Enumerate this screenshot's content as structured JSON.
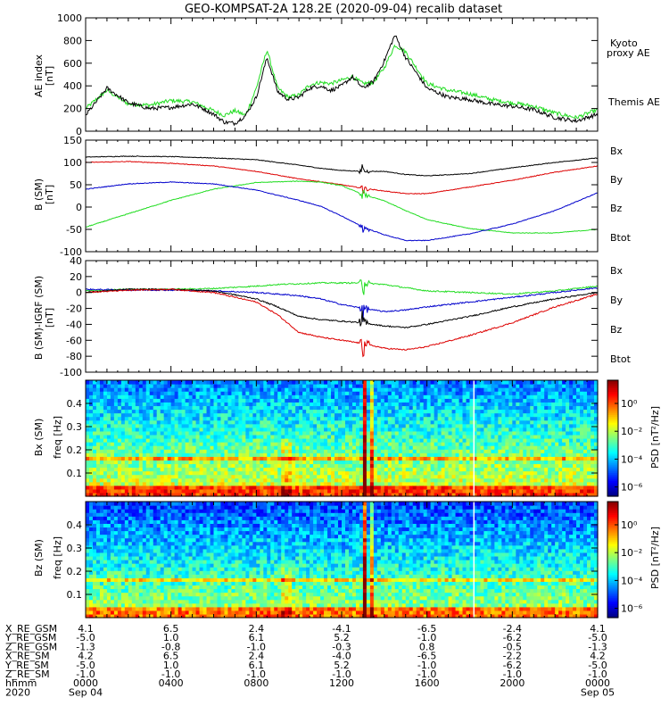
{
  "title": "GEO-KOMPSAT-2A 128.2E (2020-09-04) recalib dataset",
  "colors": {
    "black": "#000000",
    "green": "#22dd22",
    "blue": "#0000cc",
    "red": "#dd0000",
    "legend_green": "#33cc33",
    "legend_blue": "#0000aa",
    "legend_red": "#cc0000"
  },
  "x_axis": {
    "ticks": [
      "0000",
      "0400",
      "0800",
      "1200",
      "1600",
      "2000",
      "0000"
    ],
    "xlim": [
      0,
      24
    ]
  },
  "chart_data": [
    {
      "id": "ae",
      "type": "line",
      "ylabel": "AE index",
      "yunit": "[nT]",
      "ylim": [
        0,
        1000
      ],
      "yticks": [
        "0",
        "200",
        "400",
        "600",
        "800",
        "1000"
      ],
      "legend": [
        "Kyoto proxy AE",
        "Themis AE"
      ],
      "x": [
        0,
        1,
        2,
        3,
        4,
        5,
        5.5,
        6,
        6.5,
        7,
        7.5,
        8,
        8.5,
        9,
        9.5,
        10,
        10.5,
        11,
        11.5,
        12,
        12.5,
        13,
        13.5,
        14,
        14.5,
        15,
        16,
        17,
        18,
        19,
        20,
        21,
        22,
        23,
        24
      ],
      "series": [
        {
          "name": "Kyoto proxy AE",
          "color": "green",
          "values": [
            200,
            360,
            240,
            230,
            270,
            260,
            220,
            180,
            140,
            180,
            140,
            380,
            720,
            380,
            300,
            320,
            410,
            430,
            420,
            450,
            480,
            420,
            430,
            560,
            760,
            700,
            420,
            360,
            330,
            280,
            250,
            220,
            160,
            120,
            190
          ]
        },
        {
          "name": "Themis AE",
          "color": "black",
          "values": [
            140,
            380,
            250,
            200,
            210,
            240,
            200,
            150,
            80,
            70,
            140,
            300,
            650,
            350,
            280,
            300,
            380,
            400,
            360,
            400,
            480,
            380,
            440,
            620,
            850,
            650,
            380,
            300,
            280,
            240,
            220,
            190,
            120,
            90,
            150
          ]
        }
      ]
    },
    {
      "id": "bsm",
      "type": "line",
      "ylabel": "B (SM)",
      "yunit": "[nT]",
      "ylim": [
        -100,
        150
      ],
      "yticks": [
        "-100",
        "-50",
        "0",
        "50",
        "100",
        "150"
      ],
      "legend": [
        "Bx",
        "By",
        "Bz",
        "Btot"
      ],
      "x": [
        0,
        2,
        4,
        6,
        8,
        10,
        11,
        12,
        13,
        14,
        15,
        16,
        18,
        20,
        22,
        24
      ],
      "series": [
        {
          "name": "Btot",
          "color": "black",
          "values": [
            112,
            114,
            113,
            110,
            106,
            94,
            87,
            82,
            80,
            80,
            73,
            70,
            75,
            88,
            100,
            110
          ]
        },
        {
          "name": "Bz",
          "color": "red",
          "values": [
            100,
            102,
            98,
            92,
            80,
            63,
            57,
            50,
            42,
            36,
            30,
            30,
            45,
            60,
            78,
            92
          ]
        },
        {
          "name": "By",
          "color": "green",
          "values": [
            -45,
            -15,
            15,
            40,
            55,
            58,
            56,
            48,
            28,
            14,
            -8,
            -28,
            -48,
            -58,
            -58,
            -50
          ]
        },
        {
          "name": "Bx",
          "color": "blue",
          "values": [
            40,
            52,
            56,
            52,
            38,
            15,
            2,
            -20,
            -45,
            -62,
            -75,
            -75,
            -60,
            -38,
            -8,
            32
          ]
        }
      ]
    },
    {
      "id": "dbsm",
      "type": "line",
      "ylabel": "B (SM)-IGRF (SM)",
      "yunit": "[nT]",
      "ylim": [
        -100,
        40
      ],
      "yticks": [
        "-100",
        "-80",
        "-60",
        "-40",
        "-20",
        "0",
        "20",
        "40"
      ],
      "legend": [
        "Bx",
        "By",
        "Bz",
        "Btot"
      ],
      "x": [
        0,
        2,
        4,
        6,
        8,
        9,
        10,
        11,
        12,
        13,
        14,
        15,
        16,
        18,
        20,
        22,
        24
      ],
      "series": [
        {
          "name": "By",
          "color": "green",
          "values": [
            2,
            4,
            4,
            5,
            8,
            10,
            11,
            12,
            12,
            12,
            10,
            6,
            2,
            0,
            -2,
            2,
            8
          ]
        },
        {
          "name": "Bx",
          "color": "blue",
          "values": [
            4,
            3,
            3,
            2,
            0,
            -2,
            -4,
            -8,
            -15,
            -20,
            -24,
            -22,
            -18,
            -12,
            -6,
            0,
            6
          ]
        },
        {
          "name": "Btot",
          "color": "black",
          "values": [
            0,
            4,
            4,
            2,
            -8,
            -18,
            -30,
            -34,
            -36,
            -38,
            -42,
            -44,
            -40,
            -30,
            -18,
            -8,
            0
          ]
        },
        {
          "name": "Bz",
          "color": "red",
          "values": [
            0,
            3,
            4,
            0,
            -12,
            -28,
            -50,
            -56,
            -60,
            -64,
            -70,
            -72,
            -68,
            -54,
            -38,
            -18,
            -2
          ]
        }
      ]
    },
    {
      "id": "bx_spec",
      "type": "heatmap",
      "ylabel": "Bx (SM)",
      "ylabel2": "freq [Hz]",
      "ylim": [
        0,
        0.5
      ],
      "yticks": [
        "0.1",
        "0.2",
        "0.3",
        "0.4"
      ],
      "colorbar": {
        "label": "PSD [nT²/Hz]",
        "ticks": [
          "10⁰",
          "10⁻²",
          "10⁻⁴",
          "10⁻⁶"
        ]
      }
    },
    {
      "id": "bz_spec",
      "type": "heatmap",
      "ylabel": "Bz (SM)",
      "ylabel2": "freq [Hz]",
      "ylim": [
        0,
        0.5
      ],
      "yticks": [
        "0.1",
        "0.2",
        "0.3",
        "0.4"
      ],
      "colorbar": {
        "label": "PSD [nT²/Hz]",
        "ticks": [
          "10⁰",
          "10⁻²",
          "10⁻⁴",
          "10⁻⁶"
        ]
      }
    }
  ],
  "ephemeris": {
    "rows": [
      {
        "label": "X_RE_GSM",
        "values": [
          "4.1",
          "6.5",
          "2.4",
          "-4.1",
          "-6.5",
          "-2.4",
          "4.1"
        ]
      },
      {
        "label": "Y_RE_GSM",
        "values": [
          "-5.0",
          "1.0",
          "6.1",
          "5.2",
          "-1.0",
          "-6.2",
          "-5.0"
        ]
      },
      {
        "label": "Z_RE_GSM",
        "values": [
          "-1.3",
          "-0.8",
          "-1.0",
          "-0.3",
          "0.8",
          "-0.5",
          "-1.3"
        ]
      },
      {
        "label": "X_RE_SM",
        "values": [
          "4.2",
          "6.5",
          "2.4",
          "-4.0",
          "-6.5",
          "-2.2",
          "4.2"
        ]
      },
      {
        "label": "Y_RE_SM",
        "values": [
          "-5.0",
          "1.0",
          "6.1",
          "5.2",
          "-1.0",
          "-6.2",
          "-5.0"
        ]
      },
      {
        "label": "Z_RE_SM",
        "values": [
          "-1.0",
          "-1.0",
          "-1.0",
          "-1.0",
          "-1.0",
          "-1.0",
          "-1.0"
        ]
      },
      {
        "label": "hhmm",
        "values": [
          "0000",
          "0400",
          "0800",
          "1200",
          "1600",
          "2000",
          "0000"
        ]
      }
    ],
    "year": "2020",
    "date_start": "Sep 04",
    "date_end": "Sep 05"
  }
}
